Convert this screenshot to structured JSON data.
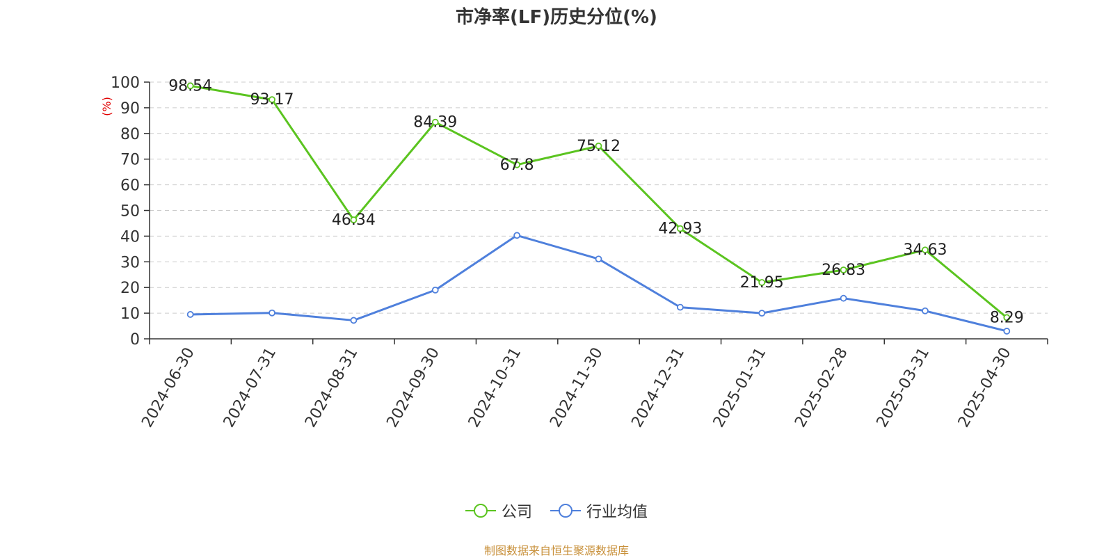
{
  "title": "市净率(LF)历史分位(%)",
  "source": "制图数据来自恒生聚源数据库",
  "colors": {
    "company": "#5bc420",
    "industry": "#4f80dc",
    "unit_label": "#e00000",
    "source": "#c8903a"
  },
  "legend": {
    "company": "公司",
    "industry": "行业均值"
  },
  "chart_data": {
    "type": "line",
    "title": "市净率(LF)历史分位(%)",
    "ylabel": "(%)",
    "ylim": [
      0,
      100
    ],
    "yticks": [
      0,
      10,
      20,
      30,
      40,
      50,
      60,
      70,
      80,
      90,
      100
    ],
    "grid": true,
    "legend_position": "bottom",
    "categories": [
      "2024-06-30",
      "2024-07-31",
      "2024-08-31",
      "2024-09-30",
      "2024-10-31",
      "2024-11-30",
      "2024-12-31",
      "2025-01-31",
      "2025-02-28",
      "2025-03-31",
      "2025-04-30"
    ],
    "series": [
      {
        "name": "公司",
        "color": "#5bc420",
        "labeled": true,
        "values": [
          98.54,
          93.17,
          46.34,
          84.39,
          67.8,
          75.12,
          42.93,
          21.95,
          26.83,
          34.63,
          8.29
        ]
      },
      {
        "name": "行业均值",
        "color": "#4f80dc",
        "labeled": false,
        "values": [
          9.5,
          10.1,
          7.2,
          19.0,
          40.3,
          31.1,
          12.3,
          10.0,
          15.8,
          10.9,
          3.0
        ]
      }
    ]
  }
}
